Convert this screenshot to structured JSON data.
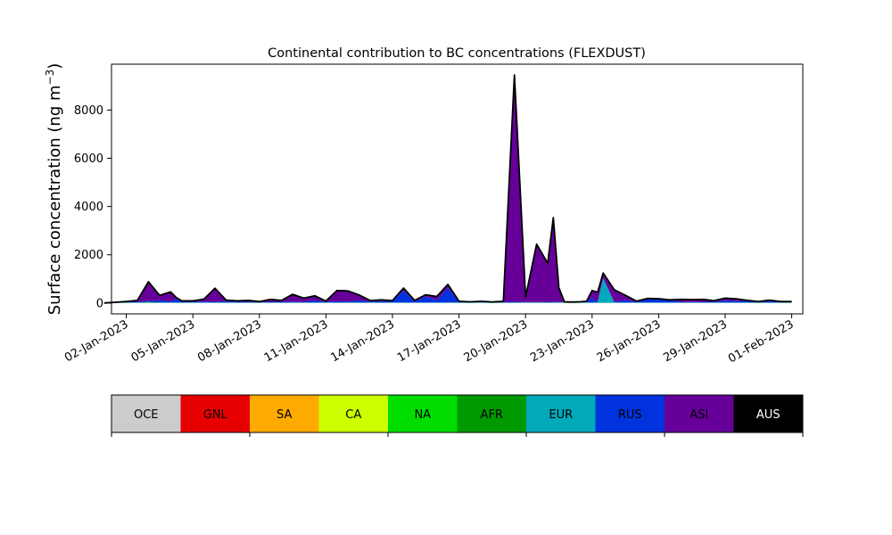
{
  "chart_data": {
    "type": "area",
    "title": "Continental contribution to BC concentrations (FLEXDUST)",
    "ylabel": "Surface concentration (ng m",
    "ylabel_sup": "−3",
    "ylabel_close": ")",
    "xlabel": "",
    "xlim": [
      "2023-01-01T08:00",
      "2023-02-01T12:00"
    ],
    "ylim": [
      -450,
      9900
    ],
    "yticks": [
      0,
      2000,
      4000,
      6000,
      8000
    ],
    "xticks": [
      "2023-01-02",
      "2023-01-05",
      "2023-01-08",
      "2023-01-11",
      "2023-01-14",
      "2023-01-17",
      "2023-01-20",
      "2023-01-23",
      "2023-01-26",
      "2023-01-29",
      "2023-02-01"
    ],
    "xtick_labels": [
      "02-Jan-2023",
      "05-Jan-2023",
      "08-Jan-2023",
      "11-Jan-2023",
      "14-Jan-2023",
      "17-Jan-2023",
      "20-Jan-2023",
      "23-Jan-2023",
      "26-Jan-2023",
      "29-Jan-2023",
      "01-Feb-2023"
    ],
    "grid": false,
    "x": [
      "2023-01-01T00:00",
      "2023-01-02T00:00",
      "2023-01-02T12:00",
      "2023-01-03T00:00",
      "2023-01-03T12:00",
      "2023-01-04T00:00",
      "2023-01-04T06:00",
      "2023-01-04T12:00",
      "2023-01-05T00:00",
      "2023-01-05T12:00",
      "2023-01-06T00:00",
      "2023-01-06T12:00",
      "2023-01-07T00:00",
      "2023-01-07T12:00",
      "2023-01-08T00:00",
      "2023-01-08T12:00",
      "2023-01-09T00:00",
      "2023-01-09T12:00",
      "2023-01-10T00:00",
      "2023-01-10T12:00",
      "2023-01-11T00:00",
      "2023-01-11T12:00",
      "2023-01-12T00:00",
      "2023-01-12T12:00",
      "2023-01-13T00:00",
      "2023-01-13T12:00",
      "2023-01-14T00:00",
      "2023-01-14T12:00",
      "2023-01-15T00:00",
      "2023-01-15T12:00",
      "2023-01-16T00:00",
      "2023-01-16T12:00",
      "2023-01-17T00:00",
      "2023-01-17T12:00",
      "2023-01-18T00:00",
      "2023-01-18T12:00",
      "2023-01-19T00:00",
      "2023-01-19T12:00",
      "2023-01-20T00:00",
      "2023-01-20T12:00",
      "2023-01-21T00:00",
      "2023-01-21T06:00",
      "2023-01-21T12:00",
      "2023-01-21T18:00",
      "2023-01-22T00:00",
      "2023-01-22T06:00",
      "2023-01-22T12:00",
      "2023-01-22T18:00",
      "2023-01-23T00:00",
      "2023-01-23T06:00",
      "2023-01-23T12:00",
      "2023-01-24T00:00",
      "2023-01-24T12:00",
      "2023-01-25T00:00",
      "2023-01-25T12:00",
      "2023-01-26T00:00",
      "2023-01-26T12:00",
      "2023-01-27T00:00",
      "2023-01-27T12:00",
      "2023-01-28T00:00",
      "2023-01-28T12:00",
      "2023-01-29T00:00",
      "2023-01-29T12:00",
      "2023-01-30T00:00",
      "2023-01-30T12:00",
      "2023-01-31T00:00",
      "2023-01-31T12:00",
      "2023-02-01T00:00"
    ],
    "series": [
      {
        "name": "OCE",
        "color": "#cccccc",
        "values": [
          0,
          0,
          0,
          0,
          0,
          0,
          0,
          0,
          0,
          0,
          0,
          0,
          0,
          0,
          0,
          0,
          0,
          0,
          0,
          0,
          0,
          0,
          0,
          0,
          0,
          0,
          0,
          0,
          0,
          0,
          0,
          0,
          0,
          0,
          0,
          0,
          0,
          0,
          0,
          0,
          0,
          0,
          0,
          0,
          0,
          0,
          0,
          0,
          0,
          0,
          0,
          0,
          0,
          0,
          0,
          0,
          0,
          0,
          0,
          0,
          0,
          0,
          0,
          0,
          0,
          0,
          0,
          0
        ]
      },
      {
        "name": "GNL",
        "color": "#e60000",
        "values": [
          0,
          0,
          0,
          0,
          0,
          0,
          0,
          0,
          0,
          0,
          0,
          0,
          0,
          0,
          0,
          0,
          0,
          0,
          0,
          0,
          0,
          0,
          0,
          0,
          0,
          0,
          0,
          0,
          0,
          0,
          0,
          0,
          0,
          0,
          0,
          0,
          0,
          0,
          0,
          0,
          0,
          0,
          0,
          0,
          0,
          0,
          0,
          0,
          0,
          0,
          0,
          0,
          0,
          0,
          0,
          0,
          0,
          0,
          0,
          0,
          0,
          0,
          0,
          0,
          0,
          0,
          0,
          0
        ]
      },
      {
        "name": "SA",
        "color": "#ffaa00",
        "values": [
          0,
          0,
          0,
          0,
          0,
          0,
          0,
          0,
          0,
          0,
          0,
          0,
          0,
          0,
          0,
          0,
          0,
          0,
          0,
          0,
          0,
          0,
          0,
          0,
          0,
          0,
          0,
          0,
          0,
          0,
          0,
          0,
          0,
          0,
          0,
          0,
          0,
          0,
          0,
          0,
          0,
          0,
          0,
          0,
          0,
          0,
          0,
          0,
          0,
          0,
          0,
          0,
          0,
          0,
          0,
          0,
          0,
          0,
          0,
          0,
          0,
          0,
          0,
          0,
          0,
          0,
          0,
          0
        ]
      },
      {
        "name": "CA",
        "color": "#ccff00",
        "values": [
          0,
          0,
          0,
          0,
          0,
          0,
          0,
          0,
          0,
          0,
          0,
          0,
          0,
          0,
          0,
          0,
          0,
          0,
          0,
          0,
          0,
          0,
          0,
          0,
          0,
          0,
          0,
          0,
          0,
          0,
          0,
          0,
          0,
          0,
          0,
          0,
          0,
          0,
          0,
          0,
          0,
          0,
          0,
          0,
          0,
          0,
          0,
          0,
          0,
          0,
          0,
          0,
          0,
          0,
          0,
          0,
          0,
          0,
          0,
          0,
          0,
          0,
          0,
          0,
          0,
          0,
          0,
          0
        ]
      },
      {
        "name": "NA",
        "color": "#00dd00",
        "values": [
          0,
          10,
          10,
          20,
          10,
          10,
          10,
          10,
          10,
          10,
          10,
          10,
          10,
          10,
          10,
          10,
          10,
          10,
          10,
          10,
          10,
          10,
          10,
          10,
          10,
          10,
          10,
          10,
          10,
          10,
          10,
          10,
          10,
          10,
          10,
          10,
          10,
          10,
          10,
          10,
          10,
          10,
          10,
          10,
          10,
          10,
          10,
          10,
          10,
          10,
          10,
          10,
          10,
          10,
          10,
          10,
          10,
          10,
          10,
          10,
          10,
          10,
          10,
          10,
          10,
          10,
          10,
          10
        ]
      },
      {
        "name": "AFR",
        "color": "#009900",
        "values": [
          0,
          0,
          0,
          0,
          0,
          0,
          0,
          0,
          0,
          0,
          0,
          0,
          0,
          0,
          0,
          0,
          0,
          0,
          0,
          0,
          0,
          0,
          0,
          0,
          0,
          0,
          0,
          0,
          0,
          0,
          0,
          0,
          0,
          0,
          0,
          0,
          0,
          0,
          0,
          0,
          0,
          0,
          0,
          0,
          0,
          0,
          0,
          0,
          0,
          0,
          0,
          0,
          0,
          0,
          0,
          0,
          0,
          0,
          0,
          0,
          0,
          0,
          0,
          0,
          0,
          0,
          0,
          0
        ]
      },
      {
        "name": "EUR",
        "color": "#00aabb",
        "values": [
          0,
          10,
          10,
          20,
          10,
          10,
          10,
          10,
          10,
          10,
          10,
          10,
          10,
          10,
          10,
          10,
          10,
          10,
          10,
          10,
          10,
          10,
          10,
          10,
          10,
          10,
          10,
          10,
          10,
          10,
          10,
          10,
          10,
          10,
          10,
          10,
          10,
          10,
          10,
          10,
          10,
          10,
          10,
          10,
          10,
          10,
          10,
          10,
          10,
          10,
          1000,
          10,
          10,
          10,
          10,
          10,
          10,
          10,
          10,
          10,
          10,
          10,
          10,
          10,
          10,
          10,
          10,
          10
        ]
      },
      {
        "name": "RUS",
        "color": "#0033dd",
        "values": [
          0,
          30,
          30,
          40,
          100,
          40,
          150,
          30,
          30,
          40,
          30,
          60,
          30,
          30,
          20,
          30,
          30,
          40,
          30,
          80,
          30,
          50,
          40,
          90,
          40,
          50,
          60,
          500,
          30,
          250,
          100,
          600,
          30,
          30,
          30,
          20,
          30,
          30,
          20,
          20,
          30,
          20,
          20,
          20,
          20,
          20,
          30,
          20,
          200,
          30,
          30,
          30,
          100,
          20,
          150,
          150,
          100,
          30,
          20,
          30,
          30,
          80,
          50,
          80,
          30,
          80,
          30,
          30
        ]
      },
      {
        "name": "ASI",
        "color": "#660099",
        "values": [
          0,
          10,
          60,
          800,
          200,
          400,
          60,
          40,
          40,
          100,
          560,
          40,
          40,
          60,
          20,
          100,
          60,
          300,
          150,
          200,
          30,
          450,
          440,
          220,
          40,
          60,
          20,
          100,
          60,
          70,
          150,
          150,
          20,
          0,
          20,
          0,
          20,
          9400,
          200,
          2400,
          1600,
          3500,
          600,
          10,
          1,
          0,
          1,
          30,
          300,
          400,
          200,
          500,
          200,
          40,
          20,
          10,
          10,
          100,
          100,
          100,
          50,
          100,
          100,
          10,
          10,
          20,
          10,
          10
        ]
      },
      {
        "name": "AUS",
        "color": "#000000",
        "values": [
          0,
          0,
          0,
          0,
          0,
          0,
          0,
          0,
          0,
          0,
          0,
          0,
          0,
          0,
          0,
          0,
          0,
          0,
          0,
          0,
          0,
          0,
          0,
          0,
          0,
          0,
          0,
          0,
          0,
          0,
          0,
          0,
          0,
          0,
          0,
          0,
          0,
          0,
          0,
          0,
          0,
          0,
          0,
          0,
          0,
          0,
          0,
          0,
          0,
          0,
          0,
          0,
          0,
          0,
          0,
          0,
          0,
          0,
          0,
          0,
          0,
          0,
          0,
          0,
          0,
          0,
          0,
          0
        ]
      }
    ],
    "legend": {
      "placement": "bottom",
      "entries": [
        "OCE",
        "GNL",
        "SA",
        "CA",
        "NA",
        "AFR",
        "EUR",
        "RUS",
        "ASI",
        "AUS"
      ],
      "text_colors": [
        "#000000",
        "#000000",
        "#000000",
        "#000000",
        "#000000",
        "#000000",
        "#000000",
        "#000000",
        "#000000",
        "#ffffff"
      ]
    }
  }
}
